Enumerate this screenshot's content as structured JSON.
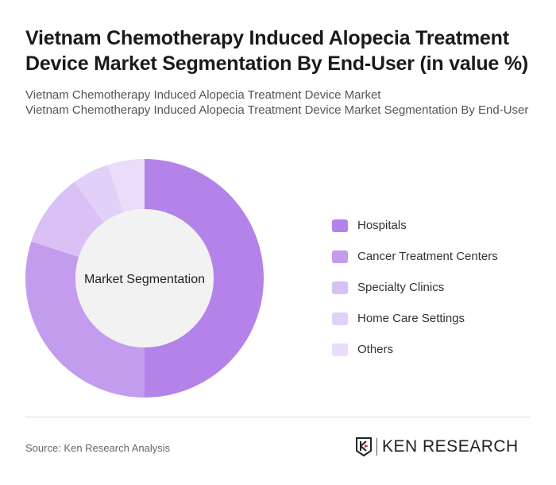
{
  "title": "Vietnam Chemotherapy Induced Alopecia Treatment Device Market Segmentation By End-User (in value %)",
  "subtitle_lines": [
    "Vietnam Chemotherapy Induced Alopecia Treatment Device Market",
    "Vietnam Chemotherapy Induced Alopecia Treatment Device Market Segmentation By End-User"
  ],
  "chart_data": {
    "type": "pie",
    "variant": "donut",
    "center_label": "Market Segmentation",
    "legend_position": "right",
    "categories": [
      "Hospitals",
      "Cancer Treatment Centers",
      "Specialty Clinics",
      "Home Care Settings",
      "Others"
    ],
    "values": [
      50,
      30,
      10,
      5,
      5
    ],
    "colors": [
      "#b383ea",
      "#c39cee",
      "#d9c1f6",
      "#e3d0f8",
      "#ebdcfa"
    ]
  },
  "source": "Source: Ken Research Analysis",
  "logo_text": "KEN RESEARCH"
}
